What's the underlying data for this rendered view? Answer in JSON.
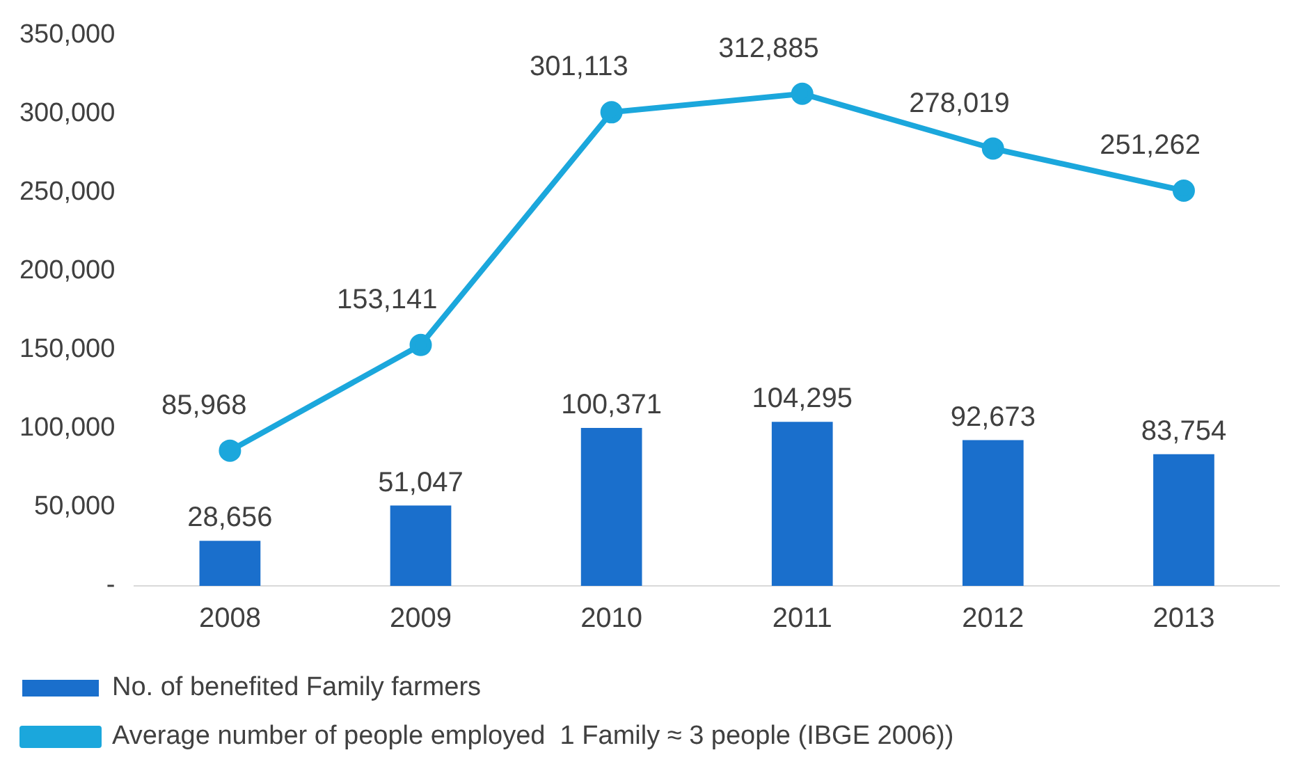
{
  "chart_data": {
    "type": "bar",
    "categories": [
      "2008",
      "2009",
      "2010",
      "2011",
      "2012",
      "2013"
    ],
    "series": [
      {
        "name": "No. of benefited Family farmers",
        "color": "#1a6fcc",
        "values": [
          28656,
          51047,
          100371,
          104295,
          92673,
          83754
        ],
        "value_labels": [
          "28,656",
          "51,047",
          "100,371",
          "104,295",
          "92,673",
          "83,754"
        ]
      },
      {
        "name": "Average number of people employed  1 Family ≈ 3 people (IBGE 2006))",
        "type": "line",
        "color": "#1ba7dc",
        "values": [
          85968,
          153141,
          301113,
          312885,
          278019,
          251262
        ],
        "value_labels": [
          "85,968",
          "153,141",
          "301,113",
          "312,885",
          "278,019",
          "251,262"
        ]
      }
    ],
    "ylim": [
      0,
      350000
    ],
    "yticks": [
      {
        "value": 0,
        "label": "-"
      },
      {
        "value": 50000,
        "label": "50,000"
      },
      {
        "value": 100000,
        "label": "100,000"
      },
      {
        "value": 150000,
        "label": "150,000"
      },
      {
        "value": 200000,
        "label": "200,000"
      },
      {
        "value": 250000,
        "label": "250,000"
      },
      {
        "value": 300000,
        "label": "300,000"
      },
      {
        "value": 350000,
        "label": "350,000"
      }
    ],
    "grid": false,
    "legend": "bottom",
    "marker": "circle",
    "line_style": "solid"
  }
}
